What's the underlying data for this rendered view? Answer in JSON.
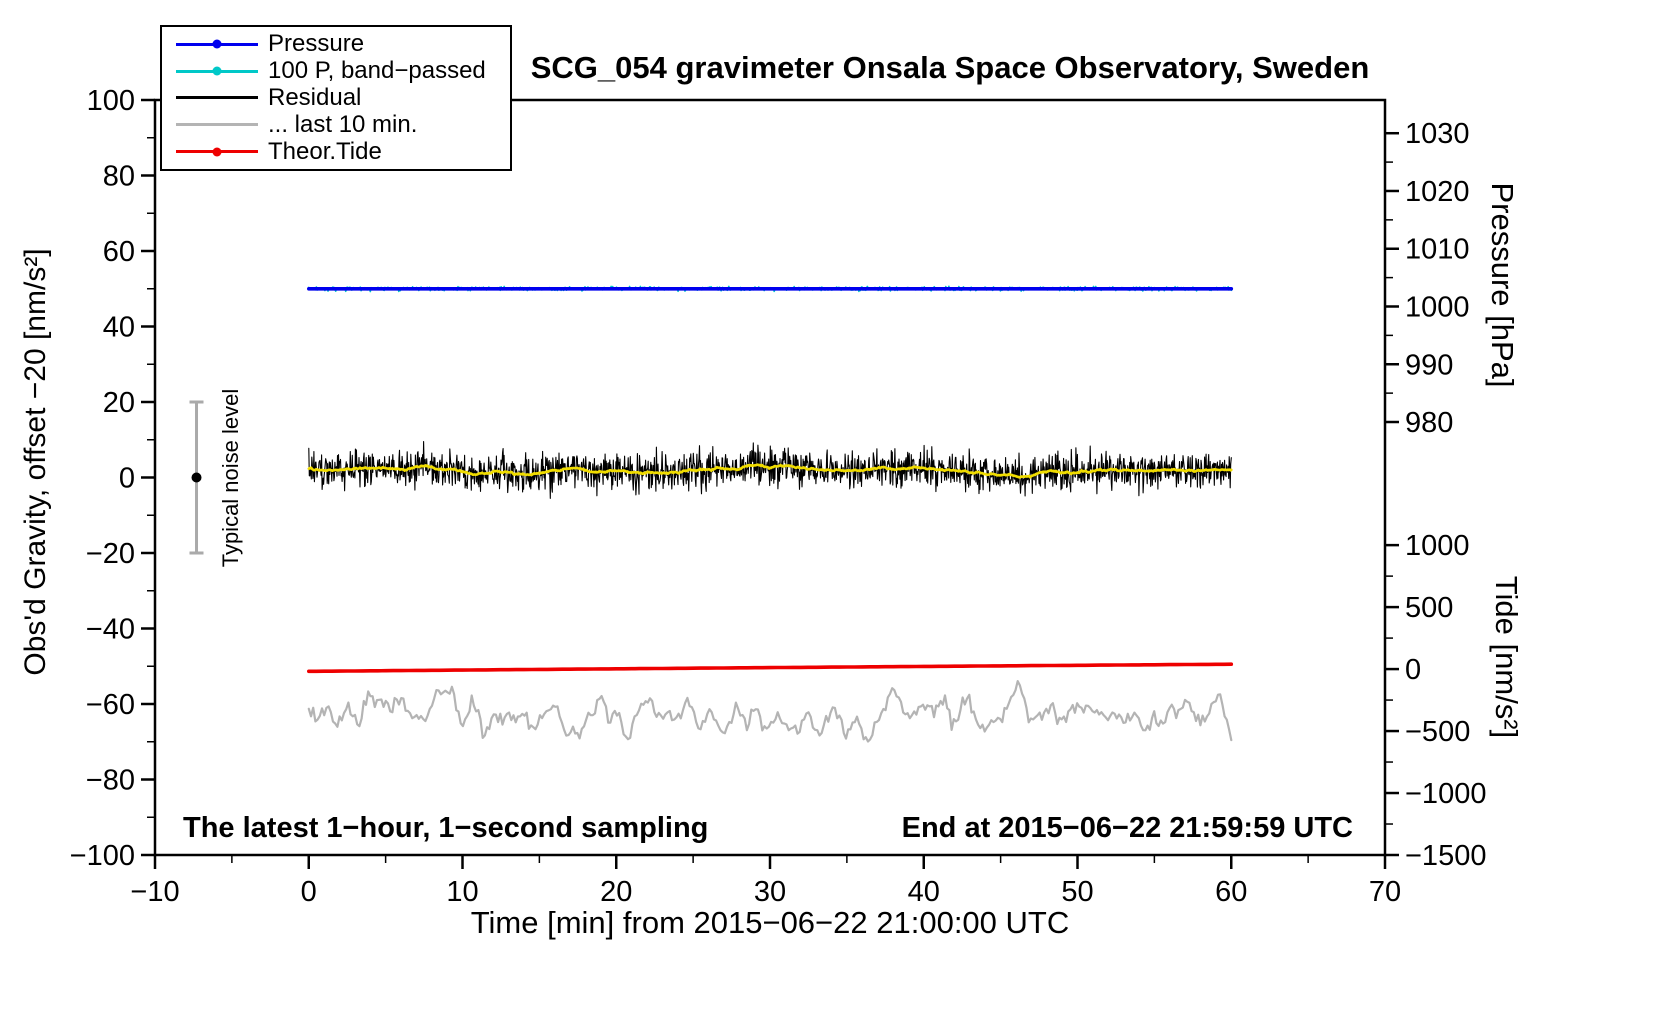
{
  "title": "SCG_054 gravimeter Onsala Space Observatory, Sweden",
  "annotations": {
    "sampling_note": "The latest 1−hour, 1−second sampling",
    "end_time_note": "End at 2015−06−22 21:59:59 UTC",
    "noise_label": "Typical noise level"
  },
  "legend": [
    {
      "label": "Pressure",
      "color": "#0000ee",
      "marker": true
    },
    {
      "label": "100 P, band−passed",
      "color": "#00c8c8",
      "marker": true
    },
    {
      "label": "Residual",
      "color": "#000000",
      "marker": false
    },
    {
      "label": "... last 10 min.",
      "color": "#b4b4b4",
      "marker": false
    },
    {
      "label": "Theor.Tide",
      "color": "#ee0000",
      "marker": true
    }
  ],
  "chart_data": {
    "type": "line",
    "title": "SCG_054 gravimeter Onsala Space Observatory, Sweden",
    "xlabel": "Time [min] from 2015−06−22 21:00:00 UTC",
    "x_range": [
      -10,
      70
    ],
    "x_ticks": [
      -10,
      0,
      10,
      20,
      30,
      40,
      50,
      60,
      70
    ],
    "x_minor_step": 5,
    "left_axis": {
      "label": "Obs'd Gravity, offset −20 [nm/s²]",
      "range": [
        -100,
        100
      ],
      "ticks": [
        -100,
        -80,
        -60,
        -40,
        -20,
        0,
        20,
        40,
        60,
        80,
        100
      ],
      "minor_step": 10
    },
    "pressure_axis": {
      "label": "Pressure [hPa]",
      "ticks": [
        1030,
        1020,
        1010,
        1000,
        990,
        980
      ],
      "minor_ticks": [
        1025,
        1015,
        1005,
        995,
        985
      ],
      "value_at_980_on_left_axis": 14.7,
      "left_units_per_hPa": 1.53
    },
    "tide_axis": {
      "label": "Tide [nm/s²]",
      "ticks": [
        1000,
        500,
        0,
        -500,
        -1000,
        -1500
      ],
      "minor_ticks": [
        750,
        250,
        -250,
        -750,
        -1250
      ],
      "value_at_minus1500_on_left_axis": -100,
      "left_units_per_nms2": 0.032834
    },
    "grid": false,
    "legend_position": "top-left",
    "seed": 20150622,
    "series": [
      {
        "id": "band-passed",
        "name": "100 P, band−passed",
        "style": "noise-flat",
        "x_start": 0,
        "x_end": 60,
        "mean_left_axis": 50,
        "noise_sigma": 0.25,
        "points": 1200,
        "color": "#00c8c8",
        "line_width": 1.6
      },
      {
        "id": "pressure",
        "name": "Pressure",
        "style": "flat",
        "x_start": 0,
        "x_end": 60,
        "value_left_axis": 50,
        "approx_value_hPa": 1003,
        "color": "#0000ee",
        "line_width": 3.6
      },
      {
        "id": "residual",
        "name": "Residual",
        "style": "noise",
        "x_start": 0,
        "x_end": 60,
        "mean_left_axis": 2,
        "noise_sigma": 2.4,
        "slow_amp_1": 0.7,
        "slow_amp_2": 0.4,
        "points": 1800,
        "color": "#000000",
        "line_width": 1.1
      },
      {
        "id": "residual-smooth",
        "name": "Residual smoothed",
        "style": "moving-average-of-residual",
        "window": 41,
        "color": "#f0dc00",
        "line_width": 2.6
      },
      {
        "id": "last-10-min",
        "name": "... last 10 min.",
        "style": "smooth-noise",
        "x_start": 0,
        "x_end": 60,
        "mean_left_axis": -63,
        "noise_sigma": 6,
        "smooth_window": 5,
        "wobble_amp": 0.8,
        "points": 420,
        "color": "#b4b4b4",
        "line_width": 2.2
      },
      {
        "id": "theor-tide",
        "name": "Theor.Tide",
        "style": "trend",
        "x_start": 0,
        "x_end": 60,
        "start_left_axis": -51.35,
        "end_left_axis": -49.46,
        "start_tide_nms2": -20,
        "end_tide_nms2": 40,
        "coeff_linear": 0.0345,
        "coeff_quadratic": -5e-05,
        "color": "#ee0000",
        "line_width": 3.6
      }
    ],
    "noise_bar": {
      "x_min": -7.3,
      "center_left_axis": 0,
      "half_range": 20,
      "bar_color": "#aaaaaa",
      "dot_color": "#000000"
    }
  }
}
